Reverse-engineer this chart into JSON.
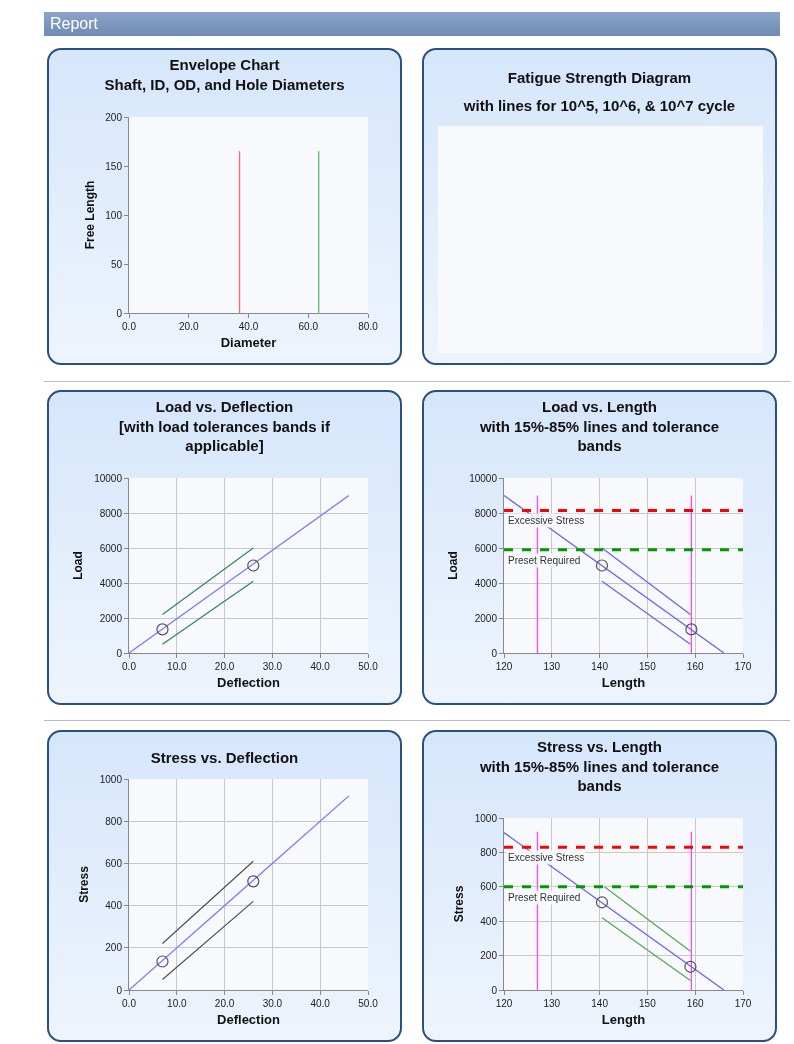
{
  "chart_data": [
    {
      "type": "other",
      "title": "Report"
    },
    {
      "type": "line",
      "title": "Envelope Chart",
      "subtitle": "Shaft, ID, OD, and Hole Diameters",
      "xlabel": "Diameter",
      "ylabel": "Free Length",
      "xlim": [
        0,
        80
      ],
      "xticks": [
        {
          "value": 0,
          "label": "0.0"
        },
        {
          "value": 20,
          "label": "20.0"
        },
        {
          "value": 40,
          "label": "40.0"
        },
        {
          "value": 60,
          "label": "60.0"
        },
        {
          "value": 80,
          "label": "80.0"
        }
      ],
      "ylim": [
        0,
        200
      ],
      "yticks": [
        0,
        50,
        100,
        150,
        200
      ],
      "grid": false,
      "series": [
        {
          "type": "line",
          "color": "#ff6666",
          "x": [
            37,
            37
          ],
          "values": [
            0,
            165
          ]
        },
        {
          "type": "line",
          "color": "#66bb66",
          "x": [
            63.5,
            63.5
          ],
          "values": [
            0,
            165
          ]
        }
      ]
    },
    {
      "type": "other",
      "title": "Fatigue Strength Diagram",
      "subtitle": "with lines for 10^5, 10^6, & 10^7 cycle"
    },
    {
      "type": "line",
      "title": "Load vs. Deflection",
      "subtitle": "[with load tolerances bands if applicable]",
      "xlabel": "Deflection",
      "ylabel": "Load",
      "xlim": [
        0,
        50
      ],
      "xticks": [
        {
          "value": 0,
          "label": "0.0"
        },
        {
          "value": 10,
          "label": "10.0"
        },
        {
          "value": 20,
          "label": "20.0"
        },
        {
          "value": 30,
          "label": "30.0"
        },
        {
          "value": 40,
          "label": "40.0"
        },
        {
          "value": 50,
          "label": "50.0"
        }
      ],
      "ylim": [
        0,
        10000
      ],
      "yticks": [
        0,
        2000,
        4000,
        6000,
        8000,
        10000
      ],
      "grid": true,
      "series": [
        {
          "type": "line",
          "color": "#7777ff",
          "x": [
            0,
            46
          ],
          "values": [
            0,
            9000
          ]
        },
        {
          "type": "line",
          "color": "#338866",
          "x": [
            7,
            26
          ],
          "values": [
            2200,
            6000
          ]
        },
        {
          "type": "line",
          "color": "#338866",
          "x": [
            7,
            26
          ],
          "values": [
            500,
            4100
          ]
        },
        {
          "type": "scatter",
          "color": "#555555",
          "marker": "circle",
          "x": [
            7,
            26
          ],
          "values": [
            1350,
            5000
          ]
        }
      ]
    },
    {
      "type": "line",
      "title": "Load vs. Length",
      "subtitle": "with 15%-85% lines and tolerance bands",
      "xlabel": "Length",
      "ylabel": "Load",
      "xlim": [
        120,
        170
      ],
      "xticks": [
        120,
        130,
        140,
        150,
        160,
        170
      ],
      "ylim": [
        0,
        10000
      ],
      "yticks": [
        0,
        2000,
        4000,
        6000,
        8000,
        10000
      ],
      "grid": true,
      "series": [
        {
          "type": "line",
          "color": "#ff44ff",
          "x": [
            127,
            127
          ],
          "values": [
            0,
            9000
          ]
        },
        {
          "type": "line",
          "color": "#ff44ff",
          "x": [
            159.2,
            159.2
          ],
          "values": [
            0,
            9000
          ]
        },
        {
          "type": "line",
          "color": "#6666ee",
          "x": [
            120,
            166
          ],
          "values": [
            9000,
            0
          ]
        },
        {
          "type": "line",
          "color": "#6666ee",
          "x": [
            140.5,
            159
          ],
          "values": [
            6000,
            2200
          ]
        },
        {
          "type": "line",
          "color": "#6666ee",
          "x": [
            140.5,
            159
          ],
          "values": [
            4100,
            500
          ]
        },
        {
          "type": "scatter",
          "color": "#555555",
          "marker": "circle",
          "x": [
            140.5,
            159.2
          ],
          "values": [
            5000,
            1350
          ]
        }
      ],
      "ref_lines": [
        {
          "axis": "y",
          "value": 8150,
          "label": "Excessive Stress",
          "color": "#ff0000",
          "line_style": "dashed"
        },
        {
          "axis": "y",
          "value": 5900,
          "label": "Preset Required",
          "color": "#009900",
          "line_style": "dashed"
        }
      ]
    },
    {
      "type": "line",
      "title": "Stress vs. Deflection",
      "xlabel": "Deflection",
      "ylabel": "Stress",
      "xlim": [
        0,
        50
      ],
      "xticks": [
        {
          "value": 0,
          "label": "0.0"
        },
        {
          "value": 10,
          "label": "10.0"
        },
        {
          "value": 20,
          "label": "20.0"
        },
        {
          "value": 30,
          "label": "30.0"
        },
        {
          "value": 40,
          "label": "40.0"
        },
        {
          "value": 50,
          "label": "50.0"
        }
      ],
      "ylim": [
        0,
        1000
      ],
      "yticks": [
        0,
        200,
        400,
        600,
        800,
        1000
      ],
      "grid": true,
      "series": [
        {
          "type": "line",
          "color": "#7777ff",
          "x": [
            0,
            46
          ],
          "values": [
            0,
            920
          ]
        },
        {
          "type": "line",
          "color": "#555555",
          "x": [
            7,
            26
          ],
          "values": [
            220,
            610
          ]
        },
        {
          "type": "line",
          "color": "#555555",
          "x": [
            7,
            26
          ],
          "values": [
            50,
            420
          ]
        },
        {
          "type": "scatter",
          "color": "#555555",
          "marker": "circle",
          "x": [
            7,
            26
          ],
          "values": [
            135,
            515
          ]
        }
      ]
    },
    {
      "type": "line",
      "title": "Stress vs. Length",
      "subtitle": "with 15%-85% lines and tolerance bands",
      "xlabel": "Length",
      "ylabel": "Stress",
      "xlim": [
        120,
        170
      ],
      "xticks": [
        120,
        130,
        140,
        150,
        160,
        170
      ],
      "ylim": [
        0,
        1000
      ],
      "yticks": [
        0,
        200,
        400,
        600,
        800,
        1000
      ],
      "grid": true,
      "series": [
        {
          "type": "line",
          "color": "#ff44ff",
          "x": [
            127,
            127
          ],
          "values": [
            0,
            920
          ]
        },
        {
          "type": "line",
          "color": "#ff44ff",
          "x": [
            159.2,
            159.2
          ],
          "values": [
            0,
            920
          ]
        },
        {
          "type": "line",
          "color": "#6666ee",
          "x": [
            120,
            166
          ],
          "values": [
            915,
            0
          ]
        },
        {
          "type": "line",
          "color": "#55aa55",
          "x": [
            141,
            159
          ],
          "values": [
            600,
            225
          ]
        },
        {
          "type": "line",
          "color": "#55aa55",
          "x": [
            140.5,
            159
          ],
          "values": [
            420,
            55
          ]
        },
        {
          "type": "scatter",
          "color": "#555555",
          "marker": "circle",
          "x": [
            140.5,
            159
          ],
          "values": [
            510,
            135
          ]
        }
      ],
      "ref_lines": [
        {
          "axis": "y",
          "value": 830,
          "label": "Excessive Stress",
          "color": "#ff0000",
          "line_style": "dashed"
        },
        {
          "axis": "y",
          "value": 600,
          "label": "Preset Required",
          "color": "#009900",
          "line_style": "dashed"
        }
      ]
    }
  ]
}
